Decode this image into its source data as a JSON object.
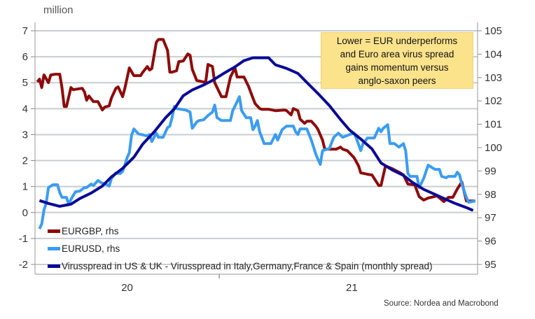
{
  "chart_data": {
    "type": "line",
    "unit_label": "million",
    "left_axis": {
      "ylim": [
        -2,
        7
      ],
      "ticks": [
        "-2",
        "-1",
        "0",
        "1",
        "2",
        "3",
        "4",
        "5",
        "6",
        "7"
      ]
    },
    "right_axis": {
      "ylim": [
        95,
        105
      ],
      "ticks": [
        "95",
        "96",
        "97",
        "98",
        "99",
        "100",
        "101",
        "102",
        "103",
        "104",
        "105"
      ]
    },
    "x_axis": {
      "xlim": [
        2019.59,
        2021.56
      ],
      "labels": [
        {
          "x": 2020.0,
          "text": "20"
        },
        {
          "x": 2021.0,
          "text": "21"
        }
      ],
      "minor_ticks": [
        2020.41
      ]
    },
    "grid": true,
    "annotation": [
      "Lower = EUR underperforms",
      "and Euro area virus spread",
      "gains momentum versus",
      "anglo-saxon peers"
    ],
    "legend_placement": "bottom-left",
    "source": "Source: Nordea and Macrobond",
    "series": [
      {
        "name": "EURGBP, rhs",
        "axis": "right",
        "color": "#8e0a0a",
        "points": [
          [
            2019.6,
            102.81
          ],
          [
            2019.61,
            102.93
          ],
          [
            2019.62,
            102.57
          ],
          [
            2019.63,
            103.11
          ],
          [
            2019.65,
            102.78
          ],
          [
            2019.66,
            103.11
          ],
          [
            2019.68,
            103.14
          ],
          [
            2019.7,
            103.14
          ],
          [
            2019.71,
            102.57
          ],
          [
            2019.72,
            101.76
          ],
          [
            2019.73,
            101.76
          ],
          [
            2019.75,
            102.57
          ],
          [
            2019.76,
            102.48
          ],
          [
            2019.78,
            102.51
          ],
          [
            2019.8,
            102.54
          ],
          [
            2019.81,
            102.39
          ],
          [
            2019.82,
            102.03
          ],
          [
            2019.83,
            102.21
          ],
          [
            2019.85,
            101.97
          ],
          [
            2019.87,
            101.97
          ],
          [
            2019.89,
            101.61
          ],
          [
            2019.9,
            101.73
          ],
          [
            2019.92,
            101.79
          ],
          [
            2019.93,
            102.12
          ],
          [
            2019.95,
            102.54
          ],
          [
            2019.96,
            102.6
          ],
          [
            2019.98,
            102.18
          ],
          [
            2019.99,
            102.54
          ],
          [
            2020.01,
            103.41
          ],
          [
            2020.03,
            103.08
          ],
          [
            2020.06,
            103.08
          ],
          [
            2020.07,
            103.23
          ],
          [
            2020.09,
            103.47
          ],
          [
            2020.1,
            103.32
          ],
          [
            2020.11,
            103.38
          ],
          [
            2020.13,
            104.51
          ],
          [
            2020.14,
            104.63
          ],
          [
            2020.16,
            104.63
          ],
          [
            2020.18,
            104.16
          ],
          [
            2020.19,
            103.23
          ],
          [
            2020.2,
            103.23
          ],
          [
            2020.22,
            103.29
          ],
          [
            2020.23,
            103.68
          ],
          [
            2020.25,
            103.71
          ],
          [
            2020.27,
            104.01
          ],
          [
            2020.28,
            103.95
          ],
          [
            2020.29,
            103.35
          ],
          [
            2020.31,
            102.87
          ],
          [
            2020.34,
            102.81
          ],
          [
            2020.35,
            102.81
          ],
          [
            2020.36,
            103.56
          ],
          [
            2020.38,
            103.47
          ],
          [
            2020.39,
            102.78
          ],
          [
            2020.42,
            102.18
          ],
          [
            2020.44,
            102.18
          ],
          [
            2020.46,
            103.02
          ],
          [
            2020.48,
            103.41
          ],
          [
            2020.49,
            103.02
          ],
          [
            2020.52,
            103.02
          ],
          [
            2020.54,
            102.63
          ],
          [
            2020.56,
            102.12
          ],
          [
            2020.57,
            101.88
          ],
          [
            2020.59,
            101.67
          ],
          [
            2020.6,
            101.64
          ],
          [
            2020.63,
            101.64
          ],
          [
            2020.66,
            101.58
          ],
          [
            2020.7,
            101.61
          ],
          [
            2020.71,
            101.58
          ],
          [
            2020.73,
            101.4
          ],
          [
            2020.74,
            101.67
          ],
          [
            2020.76,
            101.58
          ],
          [
            2020.77,
            101.22
          ],
          [
            2020.79,
            101.04
          ],
          [
            2020.8,
            101.13
          ],
          [
            2020.82,
            101.13
          ],
          [
            2020.84,
            100.92
          ],
          [
            2020.85,
            100.77
          ],
          [
            2020.87,
            100.32
          ],
          [
            2020.88,
            99.93
          ],
          [
            2020.93,
            99.93
          ],
          [
            2020.95,
            100.02
          ],
          [
            2020.96,
            99.93
          ],
          [
            2020.98,
            99.87
          ],
          [
            2021.01,
            99.57
          ],
          [
            2021.03,
            99.22
          ],
          [
            2021.04,
            98.92
          ],
          [
            2021.07,
            98.86
          ],
          [
            2021.09,
            98.83
          ],
          [
            2021.12,
            98.38
          ],
          [
            2021.13,
            98.38
          ],
          [
            2021.15,
            99.22
          ],
          [
            2021.18,
            99.1
          ],
          [
            2021.21,
            98.95
          ],
          [
            2021.23,
            98.83
          ],
          [
            2021.25,
            98.44
          ],
          [
            2021.28,
            98.41
          ],
          [
            2021.3,
            97.9
          ],
          [
            2021.32,
            97.75
          ],
          [
            2021.34,
            97.84
          ],
          [
            2021.38,
            97.93
          ],
          [
            2021.41,
            97.69
          ],
          [
            2021.43,
            97.87
          ],
          [
            2021.45,
            97.87
          ],
          [
            2021.47,
            98.23
          ],
          [
            2021.49,
            98.53
          ],
          [
            2021.51,
            97.72
          ],
          [
            2021.55,
            97.72
          ]
        ]
      },
      {
        "name": "EURUSD, rhs",
        "axis": "right",
        "color": "#3b9cf2",
        "points": [
          [
            2019.61,
            96.52
          ],
          [
            2019.62,
            96.73
          ],
          [
            2019.63,
            97.33
          ],
          [
            2019.64,
            97.63
          ],
          [
            2019.65,
            98.29
          ],
          [
            2019.67,
            98.41
          ],
          [
            2019.69,
            98.41
          ],
          [
            2019.7,
            98.08
          ],
          [
            2019.71,
            97.87
          ],
          [
            2019.73,
            97.87
          ],
          [
            2019.74,
            97.57
          ],
          [
            2019.75,
            97.78
          ],
          [
            2019.77,
            98.11
          ],
          [
            2019.79,
            98.14
          ],
          [
            2019.81,
            98.29
          ],
          [
            2019.82,
            98.29
          ],
          [
            2019.84,
            98.44
          ],
          [
            2019.85,
            98.38
          ],
          [
            2019.87,
            98.59
          ],
          [
            2019.89,
            98.47
          ],
          [
            2019.9,
            98.47
          ],
          [
            2019.92,
            98.35
          ],
          [
            2019.93,
            98.68
          ],
          [
            2019.95,
            98.92
          ],
          [
            2019.97,
            98.89
          ],
          [
            2019.98,
            98.98
          ],
          [
            2019.99,
            99.25
          ],
          [
            2020.0,
            99.57
          ],
          [
            2020.01,
            99.78
          ],
          [
            2020.02,
            100.53
          ],
          [
            2020.03,
            100.8
          ],
          [
            2020.05,
            100.59
          ],
          [
            2020.09,
            100.5
          ],
          [
            2020.1,
            100.56
          ],
          [
            2020.11,
            100.26
          ],
          [
            2020.13,
            100.62
          ],
          [
            2020.14,
            100.44
          ],
          [
            2020.16,
            100.44
          ],
          [
            2020.18,
            100.86
          ],
          [
            2020.19,
            100.92
          ],
          [
            2020.2,
            101.28
          ],
          [
            2020.21,
            101.76
          ],
          [
            2020.22,
            101.67
          ],
          [
            2020.26,
            101.61
          ],
          [
            2020.28,
            101.52
          ],
          [
            2020.29,
            100.83
          ],
          [
            2020.31,
            101.1
          ],
          [
            2020.32,
            101.16
          ],
          [
            2020.34,
            101.19
          ],
          [
            2020.36,
            101.37
          ],
          [
            2020.38,
            101.52
          ],
          [
            2020.39,
            101.82
          ],
          [
            2020.4,
            101.28
          ],
          [
            2020.42,
            101.16
          ],
          [
            2020.46,
            101.16
          ],
          [
            2020.47,
            101.58
          ],
          [
            2020.49,
            101.97
          ],
          [
            2020.5,
            102.18
          ],
          [
            2020.51,
            101.58
          ],
          [
            2020.53,
            101.28
          ],
          [
            2020.55,
            101.28
          ],
          [
            2020.56,
            100.77
          ],
          [
            2020.57,
            100.92
          ],
          [
            2020.58,
            101.16
          ],
          [
            2020.59,
            100.68
          ],
          [
            2020.61,
            100.17
          ],
          [
            2020.64,
            100.17
          ],
          [
            2020.66,
            100.56
          ],
          [
            2020.67,
            100.32
          ],
          [
            2020.69,
            100.77
          ],
          [
            2020.71,
            100.92
          ],
          [
            2020.74,
            100.92
          ],
          [
            2020.75,
            100.68
          ],
          [
            2020.76,
            100.56
          ],
          [
            2020.77,
            100.8
          ],
          [
            2020.8,
            100.8
          ],
          [
            2020.82,
            100.32
          ],
          [
            2020.84,
            99.72
          ],
          [
            2020.85,
            99.49
          ],
          [
            2020.86,
            99.28
          ],
          [
            2020.87,
            99.87
          ],
          [
            2020.9,
            99.96
          ],
          [
            2020.92,
            100.44
          ],
          [
            2020.94,
            100.62
          ],
          [
            2020.96,
            100.44
          ],
          [
            2020.99,
            100.56
          ],
          [
            2021.01,
            100.62
          ],
          [
            2021.02,
            100.41
          ],
          [
            2021.04,
            99.87
          ],
          [
            2021.05,
            100.17
          ],
          [
            2021.07,
            100.41
          ],
          [
            2021.1,
            100.41
          ],
          [
            2021.12,
            100.83
          ],
          [
            2021.13,
            100.68
          ],
          [
            2021.14,
            100.83
          ],
          [
            2021.16,
            100.98
          ],
          [
            2021.17,
            100.17
          ],
          [
            2021.19,
            100.17
          ],
          [
            2021.21,
            100.02
          ],
          [
            2021.23,
            100.17
          ],
          [
            2021.24,
            99.87
          ],
          [
            2021.25,
            98.89
          ],
          [
            2021.26,
            98.77
          ],
          [
            2021.29,
            98.77
          ],
          [
            2021.3,
            98.29
          ],
          [
            2021.32,
            98.68
          ],
          [
            2021.34,
            99.25
          ],
          [
            2021.37,
            99.07
          ],
          [
            2021.39,
            99.07
          ],
          [
            2021.4,
            98.77
          ],
          [
            2021.42,
            98.71
          ],
          [
            2021.43,
            98.77
          ],
          [
            2021.46,
            98.77
          ],
          [
            2021.47,
            98.95
          ],
          [
            2021.48,
            98.83
          ],
          [
            2021.49,
            98.44
          ],
          [
            2021.51,
            97.87
          ],
          [
            2021.52,
            97.66
          ],
          [
            2021.55,
            97.72
          ]
        ]
      },
      {
        "name": "Virusspread in US & UK - Virusspread in Italy,Germany,France & Spain (monthly spread)",
        "axis": "left",
        "color": "#0a0a96",
        "points": [
          [
            2019.61,
            0.46
          ],
          [
            2019.65,
            0.35
          ],
          [
            2019.7,
            0.24
          ],
          [
            2019.75,
            0.32
          ],
          [
            2019.79,
            0.54
          ],
          [
            2019.84,
            0.75
          ],
          [
            2019.89,
            1.02
          ],
          [
            2019.93,
            1.37
          ],
          [
            2019.98,
            1.7
          ],
          [
            2020.03,
            2.13
          ],
          [
            2020.07,
            2.64
          ],
          [
            2020.12,
            3.1
          ],
          [
            2020.17,
            3.64
          ],
          [
            2020.21,
            3.99
          ],
          [
            2020.25,
            4.5
          ],
          [
            2020.29,
            4.72
          ],
          [
            2020.34,
            4.91
          ],
          [
            2020.38,
            5.09
          ],
          [
            2020.43,
            5.36
          ],
          [
            2020.48,
            5.61
          ],
          [
            2020.52,
            5.85
          ],
          [
            2020.56,
            5.96
          ],
          [
            2020.6,
            5.96
          ],
          [
            2020.63,
            5.96
          ],
          [
            2020.66,
            5.69
          ],
          [
            2020.71,
            5.55
          ],
          [
            2020.76,
            5.36
          ],
          [
            2020.8,
            5.01
          ],
          [
            2020.85,
            4.58
          ],
          [
            2020.9,
            4.12
          ],
          [
            2020.95,
            3.58
          ],
          [
            2020.99,
            3.18
          ],
          [
            2021.04,
            2.83
          ],
          [
            2021.09,
            2.45
          ],
          [
            2021.13,
            1.91
          ],
          [
            2021.18,
            1.64
          ],
          [
            2021.23,
            1.43
          ],
          [
            2021.27,
            1.16
          ],
          [
            2021.32,
            0.89
          ],
          [
            2021.37,
            0.7
          ],
          [
            2021.41,
            0.54
          ],
          [
            2021.46,
            0.35
          ],
          [
            2021.51,
            0.19
          ],
          [
            2021.54,
            0.08
          ]
        ]
      }
    ]
  }
}
